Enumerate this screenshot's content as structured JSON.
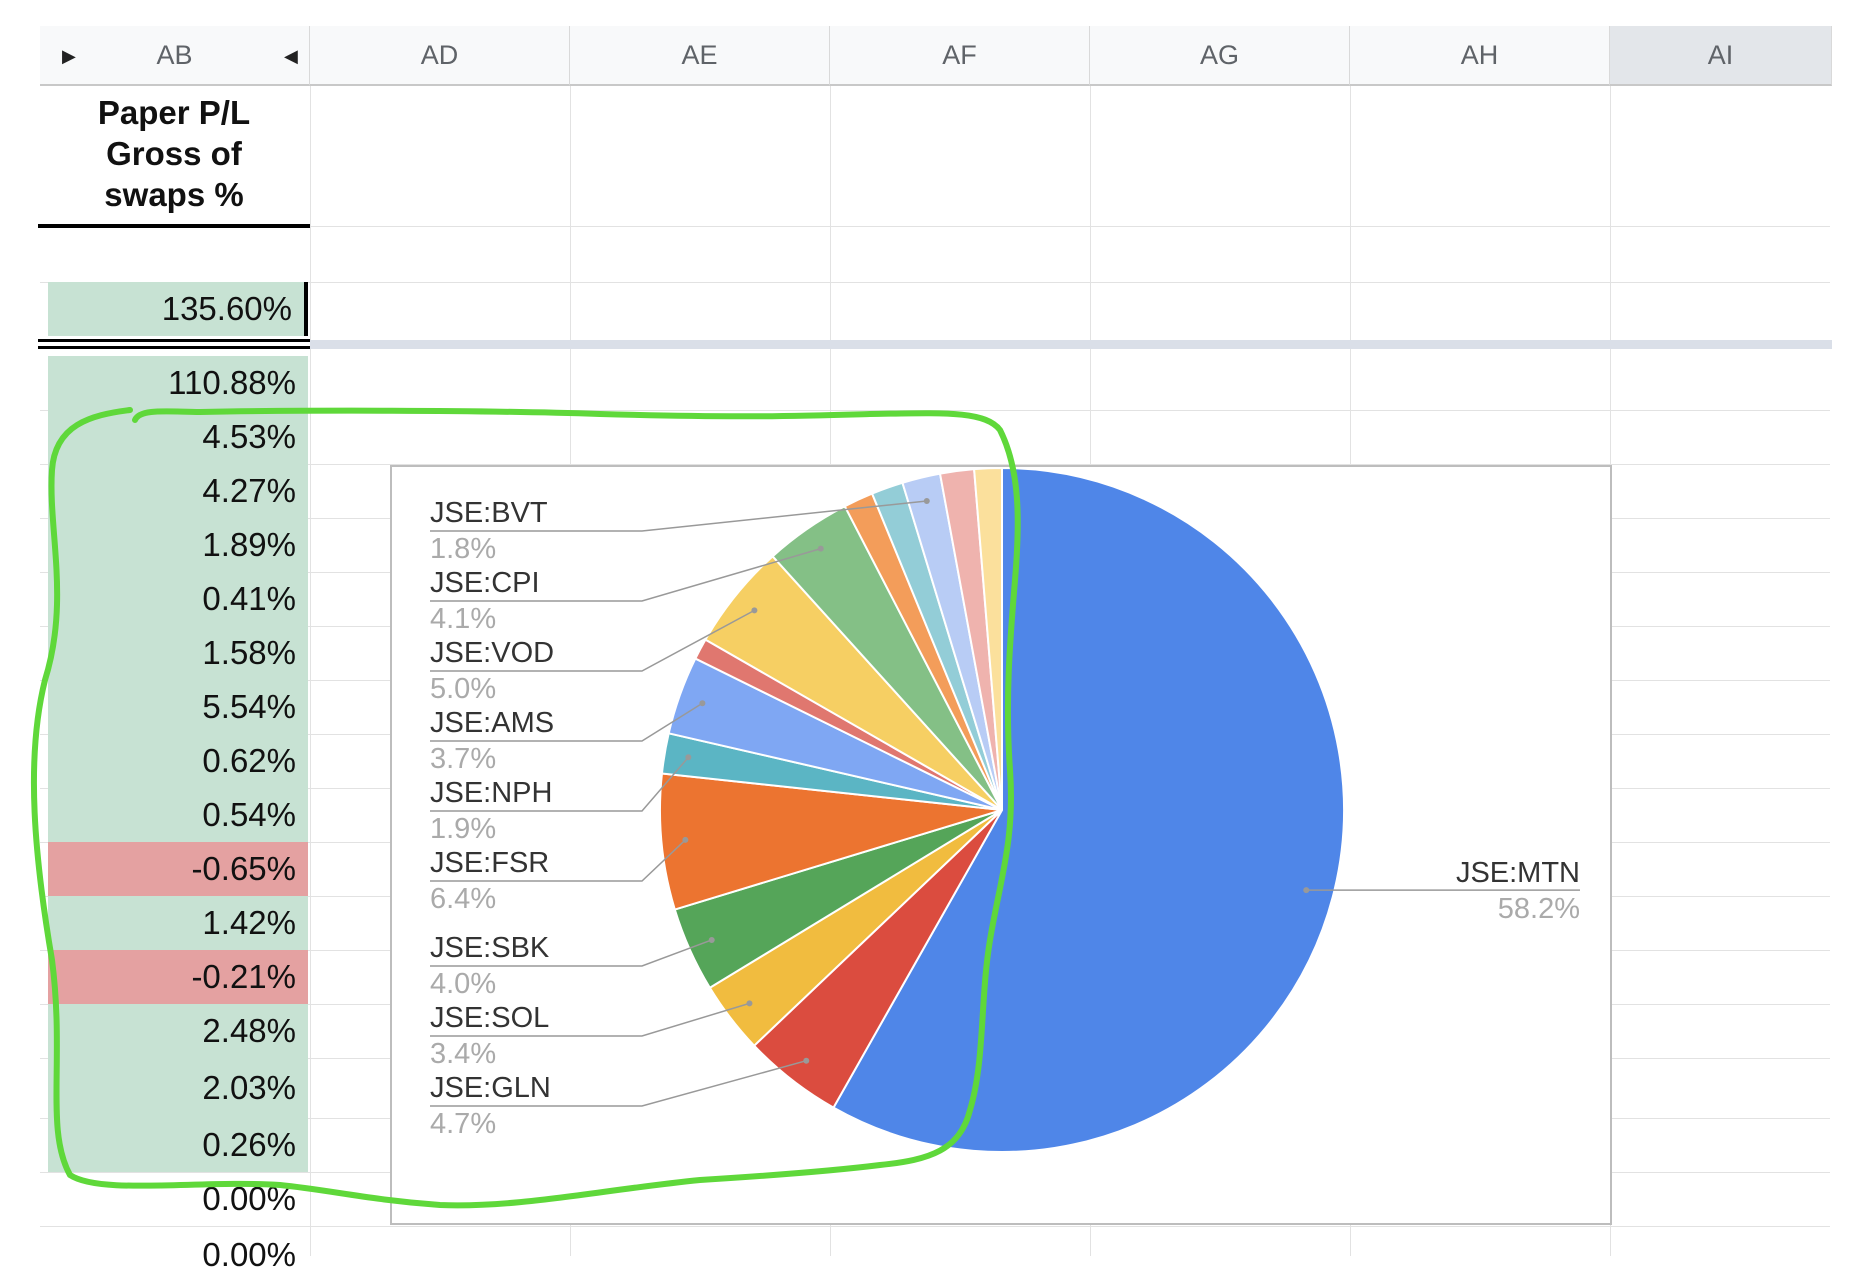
{
  "columns": [
    {
      "letter": "AB"
    },
    {
      "letter": "AD"
    },
    {
      "letter": "AE"
    },
    {
      "letter": "AF"
    },
    {
      "letter": "AG"
    },
    {
      "letter": "AH"
    },
    {
      "letter": "AI"
    }
  ],
  "header_cell": {
    "line1": "Paper P/L",
    "line2": "Gross of",
    "line3": "swaps %"
  },
  "total_cell": "135.60%",
  "values": [
    "110.88%",
    "4.53%",
    "4.27%",
    "1.89%",
    "0.41%",
    "1.58%",
    "5.54%",
    "0.62%",
    "0.54%",
    "-0.65%",
    "1.42%",
    "-0.21%",
    "2.48%",
    "2.03%",
    "0.26%",
    "0.00%",
    "0.00%"
  ],
  "colors": {
    "positive_fill": "#c7e2d3",
    "negative_fill": "#e4a1a1",
    "annotation": "#5fd83a"
  },
  "chart_data": {
    "type": "pie",
    "slices": [
      {
        "label": "JSE:MTN",
        "value": 58.2,
        "percent": "58.2%",
        "color": "#4f86e8"
      },
      {
        "label": "JSE:GLN",
        "value": 4.7,
        "percent": "4.7%",
        "color": "#db4c3f"
      },
      {
        "label": "JSE:SOL",
        "value": 3.4,
        "percent": "3.4%",
        "color": "#f1bc3f"
      },
      {
        "label": "JSE:SBK",
        "value": 4.0,
        "percent": "4.0%",
        "color": "#55a559"
      },
      {
        "label": "JSE:FSR",
        "value": 6.4,
        "percent": "6.4%",
        "color": "#ec7430"
      },
      {
        "label": "JSE:NPH",
        "value": 1.9,
        "percent": "1.9%",
        "color": "#5bb5c4"
      },
      {
        "label": "JSE:AMS",
        "value": 3.7,
        "percent": "3.7%",
        "color": "#7fa7f3"
      },
      {
        "label": "",
        "value": 1.0,
        "percent": "",
        "color": "#e0776f"
      },
      {
        "label": "JSE:VOD",
        "value": 5.0,
        "percent": "5.0%",
        "color": "#f6cf63"
      },
      {
        "label": "JSE:CPI",
        "value": 4.1,
        "percent": "4.1%",
        "color": "#84c086"
      },
      {
        "label": "",
        "value": 1.4,
        "percent": "",
        "color": "#f39d5a"
      },
      {
        "label": "",
        "value": 1.5,
        "percent": "",
        "color": "#93cdd7"
      },
      {
        "label": "JSE:BVT",
        "value": 1.8,
        "percent": "1.8%",
        "color": "#b8ccf5"
      },
      {
        "label": "",
        "value": 1.6,
        "percent": "",
        "color": "#efb3ae"
      },
      {
        "label": "",
        "value": 1.3,
        "percent": "",
        "color": "#fbe09c"
      }
    ]
  }
}
